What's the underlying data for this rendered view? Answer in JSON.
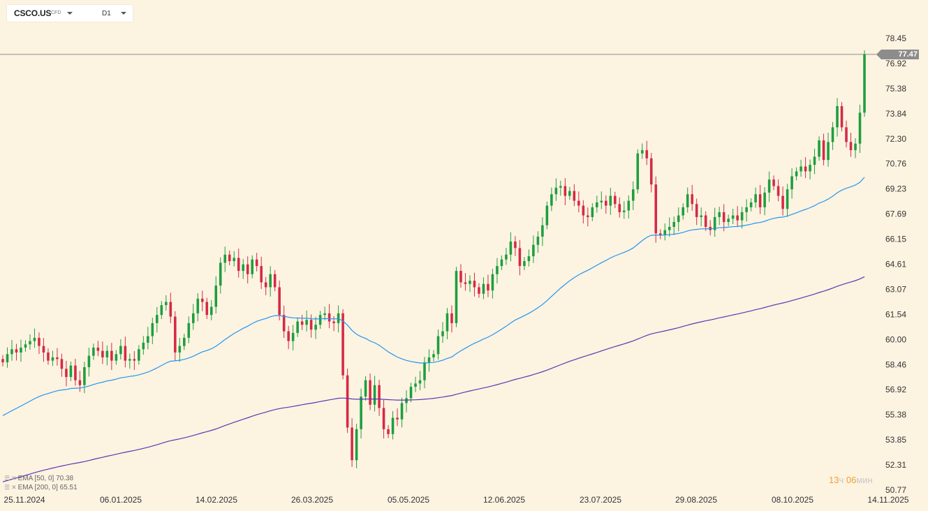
{
  "toolbar": {
    "symbol": "CSCO.US",
    "symbol_type": "CFD",
    "timeframe": "D1"
  },
  "indicators": [
    {
      "text": "EMA [50, 0] 70.38",
      "color": "#2196f3"
    },
    {
      "text": "EMA [200, 0] 65.51",
      "color": "#5e35b1"
    }
  ],
  "timer": {
    "hours": "13",
    "hours_unit": "ч",
    "minutes": "06",
    "minutes_unit": "мин"
  },
  "current_price": "77.47",
  "chart_data": {
    "type": "candlestick",
    "symbol": "CSCO.US",
    "timeframe": "D1",
    "y_ticks": [
      "78.45",
      "76.92",
      "75.38",
      "73.84",
      "72.30",
      "70.76",
      "69.23",
      "67.69",
      "66.15",
      "64.61",
      "63.07",
      "61.54",
      "60.00",
      "58.46",
      "56.92",
      "55.38",
      "53.85",
      "52.31",
      "50.77"
    ],
    "ylim": [
      50.77,
      79.5
    ],
    "x_ticks": [
      "25.11.2024",
      "06.01.2025",
      "14.02.2025",
      "26.03.2025",
      "05.05.2025",
      "12.06.2025",
      "23.07.2025",
      "29.08.2025",
      "08.10.2025",
      "14.11.2025"
    ],
    "current_price": 77.47,
    "colors": {
      "up": "#1e9e3e",
      "down": "#d42a45",
      "ema50": "#2196f3",
      "ema200": "#5e35b1",
      "price_line": "#8c8c8c"
    },
    "close": [
      58.6,
      59.1,
      59.4,
      59.2,
      59.5,
      59.7,
      59.9,
      60.1,
      59.6,
      59.2,
      58.7,
      58.9,
      58.8,
      58.2,
      57.7,
      58.4,
      57.5,
      57.2,
      58.3,
      59.0,
      59.5,
      59.3,
      58.9,
      59.3,
      58.7,
      59.1,
      59.6,
      58.7,
      58.8,
      58.7,
      59.4,
      59.8,
      60.2,
      61.0,
      61.5,
      62.1,
      62.3,
      61.4,
      59.2,
      59.6,
      60.1,
      61.0,
      61.6,
      62.5,
      62.3,
      61.5,
      62.0,
      63.3,
      64.7,
      65.2,
      64.8,
      65.0,
      64.2,
      64.6,
      64.0,
      64.9,
      64.5,
      63.5,
      63.2,
      64.0,
      63.2,
      61.5,
      60.5,
      59.9,
      60.4,
      61.1,
      60.9,
      61.2,
      60.6,
      60.9,
      61.5,
      61.6,
      61.1,
      61.0,
      61.6,
      57.8,
      54.6,
      52.6,
      54.5,
      56.5,
      57.5,
      56.0,
      57.2,
      55.8,
      54.5,
      54.2,
      55.2,
      55.1,
      56.1,
      56.4,
      57.1,
      57.3,
      57.5,
      58.6,
      58.9,
      59.1,
      60.2,
      60.5,
      61.6,
      61.0,
      64.2,
      63.5,
      63.4,
      63.6,
      63.2,
      62.8,
      63.4,
      63.0,
      64.0,
      64.5,
      64.9,
      65.2,
      66.0,
      65.6,
      64.5,
      64.8,
      65.1,
      65.8,
      66.3,
      67.0,
      68.2,
      68.9,
      69.3,
      69.4,
      68.8,
      69.1,
      68.5,
      68.2,
      67.6,
      67.5,
      68.1,
      68.4,
      68.5,
      68.2,
      68.8,
      68.3,
      67.8,
      67.9,
      68.5,
      69.2,
      71.4,
      71.6,
      71.1,
      69.5,
      66.5,
      66.4,
      66.7,
      66.9,
      67.2,
      67.6,
      68.1,
      68.9,
      68.3,
      67.5,
      67.6,
      66.9,
      66.7,
      67.5,
      67.8,
      67.2,
      67.4,
      67.6,
      67.3,
      67.8,
      68.1,
      68.4,
      68.9,
      68.1,
      69.0,
      69.8,
      69.4,
      68.8,
      68.0,
      69.2,
      70.0,
      70.3,
      70.6,
      70.3,
      70.7,
      71.2,
      72.2,
      71.0,
      72.1,
      73.0,
      74.3,
      73.0,
      72.1,
      71.6,
      72.0,
      73.9,
      77.47
    ]
  }
}
